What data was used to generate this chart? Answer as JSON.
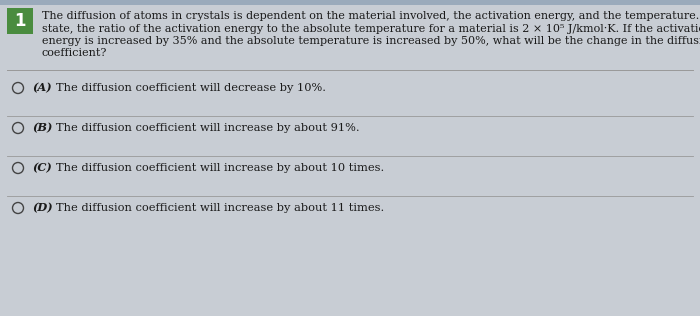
{
  "question_number": "1",
  "question_number_bg": "#4a8c3f",
  "question_number_color": "#ffffff",
  "question_text_line1": "The diffusion of atoms in crystals is dependent on the material involved, the activation energy, and the temperature. At a",
  "question_text_line2": "state, the ratio of the activation energy to the absolute temperature for a material is 2 × 10⁵ J/kmol·K. If the activation",
  "question_text_line3": "energy is increased by 35% and the absolute temperature is increased by 50%, what will be the change in the diffusion",
  "question_text_line4": "coefficient?",
  "options": [
    {
      "label": "(A)",
      "text": "  The diffusion coefficient will decrease by 10%."
    },
    {
      "label": "(B)",
      "text": "  The diffusion coefficient will increase by about 91%."
    },
    {
      "label": "(C)",
      "text": "  The diffusion coefficient will increase by about 10 times."
    },
    {
      "label": "(D)",
      "text": "  The diffusion coefficient will increase by about 11 times."
    }
  ],
  "bg_color": "#c8cdd4",
  "text_color": "#1a1a1a",
  "font_size_question": 8.0,
  "font_size_options": 8.2,
  "divider_color": "#999999",
  "top_bar_color": "#9aaabb"
}
